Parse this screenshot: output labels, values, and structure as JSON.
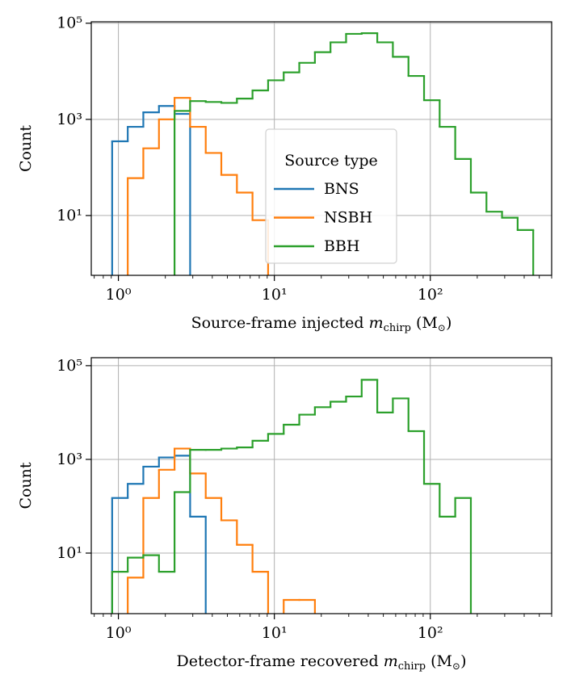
{
  "chart_data": [
    {
      "type": "histogram",
      "xscale": "log",
      "yscale": "log",
      "grid": true,
      "xlim": [
        0.67,
        600
      ],
      "ylim": [
        0.57,
        107000
      ],
      "xticks": [
        {
          "value": 1,
          "label": "10⁰"
        },
        {
          "value": 10,
          "label": "10¹"
        },
        {
          "value": 100,
          "label": "10²"
        }
      ],
      "yticks": [
        {
          "value": 10,
          "label": "10¹"
        },
        {
          "value": 1000,
          "label": "10³"
        },
        {
          "value": 100000,
          "label": "10⁵"
        }
      ],
      "xlabel": [
        "Source-frame injected ",
        "m",
        "chirp",
        " (M",
        "⊙",
        ")"
      ],
      "ylabel": "Count",
      "legend": {
        "title": "Source type",
        "loc": "lower center"
      },
      "series": [
        {
          "name": "BNS",
          "color": "#1f77b4",
          "bins": [
            0.912,
            1.148,
            1.445,
            1.82,
            2.291,
            2.884
          ],
          "values": [
            350,
            700,
            1400,
            1900,
            1300
          ]
        },
        {
          "name": "NSBH",
          "color": "#ff7f0e",
          "bins": [
            1.148,
            1.445,
            1.82,
            2.291,
            2.884,
            3.631,
            4.571,
            5.754,
            7.244,
            9.12
          ],
          "values": [
            60,
            250,
            1000,
            2800,
            700,
            200,
            70,
            30,
            8
          ]
        },
        {
          "name": "BBH",
          "color": "#2ca02c",
          "bins": [
            2.291,
            2.884,
            3.631,
            4.571,
            5.754,
            7.244,
            9.12,
            11.48,
            14.45,
            18.2,
            22.91,
            28.84,
            36.31,
            45.71,
            57.54,
            72.44,
            91.2,
            114.8,
            144.5,
            182,
            229.1,
            288.4,
            363.1,
            457.1
          ],
          "values": [
            1500,
            2400,
            2300,
            2200,
            2700,
            4000,
            6500,
            9500,
            15000,
            25000,
            40000,
            60000,
            62000,
            40000,
            20000,
            8000,
            2500,
            700,
            150,
            30,
            12,
            9,
            5
          ]
        }
      ]
    },
    {
      "type": "histogram",
      "xscale": "log",
      "yscale": "log",
      "grid": true,
      "xlim": [
        0.67,
        600
      ],
      "ylim": [
        0.51,
        148000
      ],
      "xticks": [
        {
          "value": 1,
          "label": "10⁰"
        },
        {
          "value": 10,
          "label": "10¹"
        },
        {
          "value": 100,
          "label": "10²"
        }
      ],
      "yticks": [
        {
          "value": 10,
          "label": "10¹"
        },
        {
          "value": 1000,
          "label": "10³"
        },
        {
          "value": 100000,
          "label": "10⁵"
        }
      ],
      "xlabel": [
        "Detector-frame recovered ",
        "m",
        "chirp",
        " (M",
        "⊙",
        ")"
      ],
      "ylabel": "Count",
      "series": [
        {
          "color": "#1f77b4",
          "bins": [
            0.912,
            1.148,
            1.445,
            1.82,
            2.291,
            2.884,
            3.631
          ],
          "values": [
            150,
            300,
            700,
            1100,
            1200,
            60
          ]
        },
        {
          "color": "#ff7f0e",
          "bins": [
            1.148,
            1.445,
            1.82,
            2.291,
            2.884,
            3.631,
            4.571,
            5.754,
            7.244,
            9.12,
            11.48,
            14.45,
            18.2
          ],
          "values": [
            3,
            150,
            600,
            1700,
            500,
            150,
            50,
            15,
            4,
            0,
            1,
            1
          ]
        },
        {
          "color": "#2ca02c",
          "bins": [
            0.912,
            1.148,
            1.445,
            1.82,
            2.291,
            2.884,
            3.631,
            4.571,
            5.754,
            7.244,
            9.12,
            11.48,
            14.45,
            18.2,
            22.91,
            28.84,
            36.31,
            45.71,
            57.54,
            72.44,
            91.2,
            114.8,
            144.5,
            182
          ],
          "values": [
            4,
            8,
            9,
            4,
            200,
            1600,
            1600,
            1700,
            1800,
            2500,
            3500,
            5500,
            9000,
            13000,
            17000,
            22000,
            50000,
            10000,
            20000,
            4000,
            300,
            60,
            150
          ]
        }
      ]
    }
  ]
}
